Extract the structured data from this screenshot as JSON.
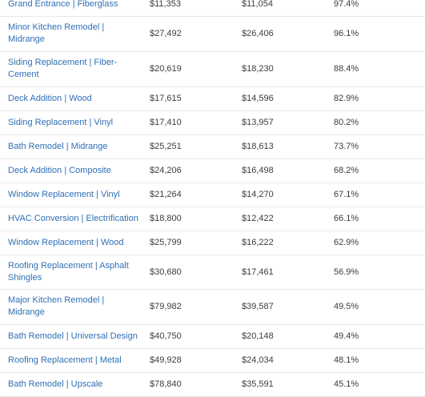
{
  "table": {
    "rows": [
      {
        "project": "Grand Entrance | Fiberglass",
        "cost": "$11,353",
        "value": "$11,054",
        "recouped": "97.4%"
      },
      {
        "project": "Minor Kitchen Remodel | Midrange",
        "cost": "$27,492",
        "value": "$26,406",
        "recouped": "96.1%"
      },
      {
        "project": "Siding Replacement | Fiber-Cement",
        "cost": "$20,619",
        "value": "$18,230",
        "recouped": "88.4%"
      },
      {
        "project": "Deck Addition | Wood",
        "cost": "$17,615",
        "value": "$14,596",
        "recouped": "82.9%"
      },
      {
        "project": "Siding Replacement | Vinyl",
        "cost": "$17,410",
        "value": "$13,957",
        "recouped": "80.2%"
      },
      {
        "project": "Bath Remodel | Midrange",
        "cost": "$25,251",
        "value": "$18,613",
        "recouped": "73.7%"
      },
      {
        "project": "Deck Addition | Composite",
        "cost": "$24,206",
        "value": "$16,498",
        "recouped": "68.2%"
      },
      {
        "project": "Window Replacement | Vinyl",
        "cost": "$21,264",
        "value": "$14,270",
        "recouped": "67.1%"
      },
      {
        "project": "HVAC Conversion | Electrification",
        "cost": "$18,800",
        "value": "$12,422",
        "recouped": "66.1%"
      },
      {
        "project": "Window Replacement | Wood",
        "cost": "$25,799",
        "value": "$16,222",
        "recouped": "62.9%"
      },
      {
        "project": "Roofing Replacement | Asphalt Shingles",
        "cost": "$30,680",
        "value": "$17,461",
        "recouped": "56.9%"
      },
      {
        "project": "Major Kitchen Remodel | Midrange",
        "cost": "$79,982",
        "value": "$39,587",
        "recouped": "49.5%"
      },
      {
        "project": "Bath Remodel | Universal Design",
        "cost": "$40,750",
        "value": "$20,148",
        "recouped": "49.4%"
      },
      {
        "project": "Roofing Replacement | Metal",
        "cost": "$49,928",
        "value": "$24,034",
        "recouped": "48.1%"
      },
      {
        "project": "Bath Remodel | Upscale",
        "cost": "$78,840",
        "value": "$35,591",
        "recouped": "45.1%"
      }
    ]
  },
  "colors": {
    "link": "#2f6fb5",
    "text": "#3c3c3c",
    "divider": "#e6e8eb"
  }
}
